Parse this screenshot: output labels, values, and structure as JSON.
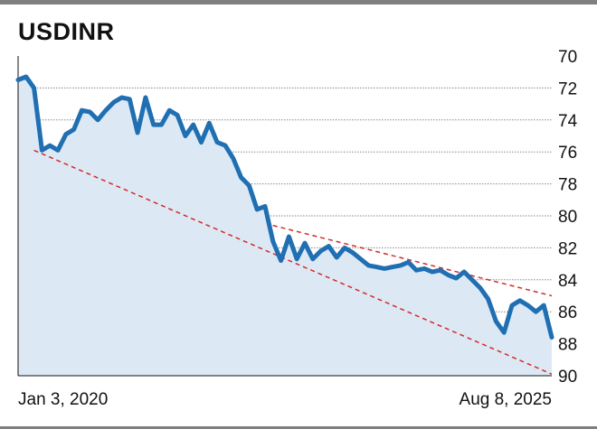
{
  "chart_data": {
    "type": "line",
    "title": "USDINR",
    "x_labels": [
      "Jan 3, 2020",
      "Aug 8, 2025"
    ],
    "y_ticks": [
      "70",
      "72",
      "74",
      "76",
      "78",
      "80",
      "82",
      "84",
      "86",
      "88",
      "90"
    ],
    "ylim": [
      70,
      90
    ],
    "y_inverted": true,
    "grid": true,
    "series": [
      {
        "color": "#1f6fb2",
        "fill": "#dce9f5",
        "x": [
          "2020-01",
          "2020-02",
          "2020-03",
          "2020-04",
          "2020-05",
          "2020-06",
          "2020-07",
          "2020-08",
          "2020-09",
          "2020-10",
          "2020-11",
          "2020-12",
          "2021-01",
          "2021-02",
          "2021-03",
          "2021-04",
          "2021-05",
          "2021-06",
          "2021-07",
          "2021-08",
          "2021-09",
          "2021-10",
          "2021-11",
          "2021-12",
          "2022-01",
          "2022-02",
          "2022-03",
          "2022-04",
          "2022-05",
          "2022-06",
          "2022-07",
          "2022-08",
          "2022-09",
          "2022-10",
          "2022-11",
          "2022-12",
          "2023-01",
          "2023-02",
          "2023-03",
          "2023-04",
          "2023-05",
          "2023-06",
          "2023-07",
          "2023-08",
          "2023-09",
          "2023-10",
          "2023-11",
          "2023-12",
          "2024-01",
          "2024-02",
          "2024-03",
          "2024-04",
          "2024-05",
          "2024-06",
          "2024-07",
          "2024-08",
          "2024-09",
          "2024-10",
          "2024-11",
          "2024-12",
          "2025-01",
          "2025-02",
          "2025-03",
          "2025-04",
          "2025-05",
          "2025-06",
          "2025-07",
          "2025-08"
        ],
        "values": [
          71.5,
          71.3,
          72.0,
          75.9,
          75.6,
          75.9,
          74.9,
          74.6,
          73.4,
          73.5,
          74.0,
          73.4,
          72.9,
          72.6,
          72.7,
          74.8,
          72.6,
          74.3,
          74.3,
          73.4,
          73.7,
          75.0,
          74.3,
          75.4,
          74.2,
          75.4,
          75.6,
          76.4,
          77.6,
          78.1,
          79.6,
          79.4,
          81.6,
          82.8,
          81.3,
          82.7,
          81.7,
          82.7,
          82.2,
          81.9,
          82.6,
          82.0,
          82.3,
          82.7,
          83.1,
          83.2,
          83.3,
          83.2,
          83.1,
          82.9,
          83.4,
          83.3,
          83.5,
          83.4,
          83.7,
          83.9,
          83.5,
          84.0,
          84.5,
          85.2,
          86.6,
          87.3,
          85.6,
          85.3,
          85.6,
          86.0,
          85.6,
          87.6
        ]
      }
    ],
    "trendlines": [
      {
        "from": {
          "x": "2020-03",
          "y": 75.9
        },
        "to": {
          "x": "2025-08",
          "y": 89.9
        },
        "style": "dashed",
        "color": "#d42a2a"
      },
      {
        "from": {
          "x": "2022-09",
          "y": 80.6
        },
        "to": {
          "x": "2025-08",
          "y": 85.0
        },
        "style": "dashed",
        "color": "#d42a2a"
      }
    ]
  }
}
